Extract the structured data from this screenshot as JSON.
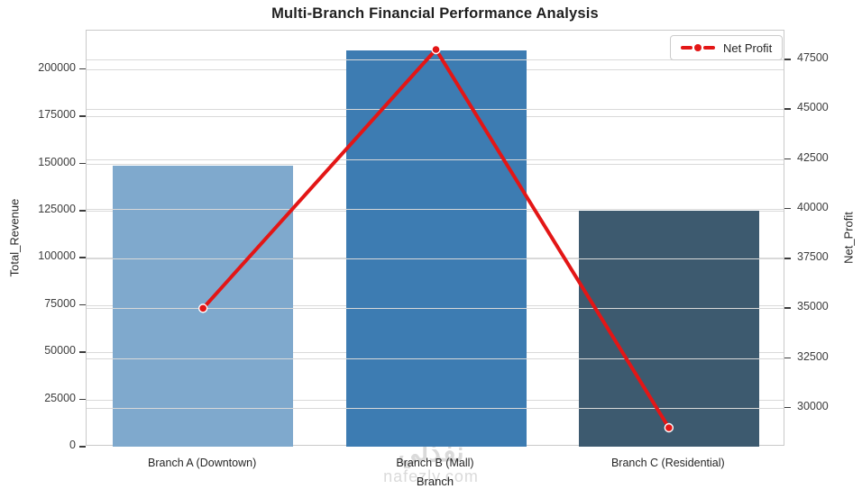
{
  "title": "Multi-Branch Financial Performance Analysis",
  "axes": {
    "xlabel": "Branch",
    "ylabel_left": "Total_Revenue",
    "ylabel_right": "Net_Profit"
  },
  "legend": {
    "label": "Net Profit",
    "position": "upper right"
  },
  "watermark": {
    "arabic": "نفذلي",
    "domain": "nafezly.com"
  },
  "chart_data": {
    "type": "bar",
    "title": "Multi-Branch Financial Performance Analysis",
    "categories": [
      "Branch A (Downtown)",
      "Branch B (Mall)",
      "Branch C (Residential)"
    ],
    "series": [
      {
        "name": "Total_Revenue",
        "plot": "bar",
        "axis": "left",
        "values": [
          149000,
          210000,
          125000
        ],
        "bar_colors": [
          "#7fa9cd",
          "#3d7cb2",
          "#3d5a6f"
        ]
      },
      {
        "name": "Net Profit",
        "plot": "line",
        "axis": "right",
        "values": [
          35000,
          48000,
          29000
        ],
        "color": "#e31616",
        "marker": "circle",
        "marker_edge_color": "#ffffff"
      }
    ],
    "xlabel": "Branch",
    "ylabel_left": "Total_Revenue",
    "ylabel_right": "Net_Profit",
    "ylim_left": [
      0,
      220500
    ],
    "ylim_right": [
      28050,
      48950
    ],
    "yticks_left": [
      0,
      25000,
      50000,
      75000,
      100000,
      125000,
      150000,
      175000,
      200000
    ],
    "yticks_right": [
      30000,
      32500,
      35000,
      37500,
      40000,
      42500,
      45000,
      47500
    ],
    "grid": true,
    "legend_position": "upper right"
  },
  "style": {
    "grid_color": "#d9d9d9",
    "spine_color": "#c9c9c9",
    "tick_color": "#3c3c3c",
    "text_color": "#262626",
    "line_color": "#e31616",
    "watermark_color": "#dadada"
  }
}
